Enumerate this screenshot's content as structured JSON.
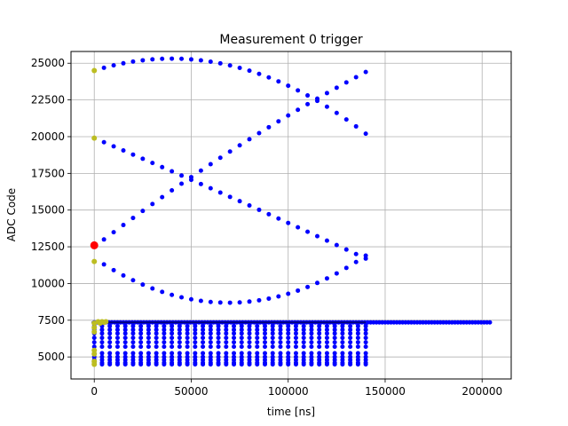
{
  "chart_data": {
    "type": "scatter",
    "title": "Measurement 0 trigger",
    "xlabel": "time [ns]",
    "ylabel": "ADC Code",
    "xlim": [
      -12000,
      215000
    ],
    "ylim": [
      3500,
      25800
    ],
    "grid": true,
    "x_ticks": [
      0,
      50000,
      100000,
      150000,
      200000
    ],
    "x_tick_labels": [
      "0",
      "50000",
      "100000",
      "150000",
      "200000"
    ],
    "y_ticks": [
      5000,
      7500,
      10000,
      12500,
      15000,
      17500,
      20000,
      22500,
      25000
    ],
    "y_tick_labels": [
      "5000",
      "7500",
      "10000",
      "12500",
      "15000",
      "17500",
      "20000",
      "22500",
      "25000"
    ],
    "colors": {
      "series": "#0000ff",
      "pretrigger": "#bcbd22",
      "trigger": "#ff0000",
      "baseline_line": "#000080"
    },
    "series": [
      {
        "kind": "curve",
        "x_start": 0,
        "x_end": 140000,
        "step": 5000,
        "y_start": 24500,
        "y_mid": 24850,
        "y_end": 20200,
        "shape": "quad"
      },
      {
        "kind": "curve",
        "x_start": 0,
        "x_end": 140000,
        "step": 5000,
        "y_start": 19900,
        "y_mid": 15900,
        "y_end": 11700,
        "shape": "quad"
      },
      {
        "kind": "curve",
        "x_start": 5000,
        "x_end": 140000,
        "step": 5000,
        "y_start": 13000,
        "y_mid": 19200,
        "y_end": 24400,
        "shape": "quad"
      },
      {
        "kind": "curve",
        "x_start": 5000,
        "x_end": 140000,
        "step": 5000,
        "y_start": 11300,
        "y_mid": 8700,
        "y_end": 11900,
        "shape": "quad"
      },
      {
        "kind": "flat",
        "x_start": 0,
        "x_end": 140000,
        "step": 4000,
        "y": 7100
      },
      {
        "kind": "flat",
        "x_start": 0,
        "x_end": 140000,
        "step": 4000,
        "y": 6850
      },
      {
        "kind": "flat",
        "x_start": 0,
        "x_end": 140000,
        "step": 4000,
        "y": 6600
      },
      {
        "kind": "flat",
        "x_start": 0,
        "x_end": 140000,
        "step": 4000,
        "y": 6300
      },
      {
        "kind": "flat",
        "x_start": 0,
        "x_end": 140000,
        "step": 4000,
        "y": 6000
      },
      {
        "kind": "flat",
        "x_start": 0,
        "x_end": 140000,
        "step": 4000,
        "y": 5700
      },
      {
        "kind": "flat",
        "x_start": 0,
        "x_end": 140000,
        "step": 4000,
        "y": 5250
      },
      {
        "kind": "flat",
        "x_start": 0,
        "x_end": 140000,
        "step": 4000,
        "y": 5000
      },
      {
        "kind": "flat",
        "x_start": 0,
        "x_end": 140000,
        "step": 4000,
        "y": 4800
      },
      {
        "kind": "flat",
        "x_start": 0,
        "x_end": 140000,
        "step": 4000,
        "y": 4600
      },
      {
        "kind": "flat",
        "x_start": 0,
        "x_end": 140000,
        "step": 4000,
        "y": 4500
      },
      {
        "kind": "flat",
        "x_start": 0,
        "x_end": 205000,
        "step": 1500,
        "y": 7350
      }
    ],
    "pretrigger_points": [
      [
        0,
        24500
      ],
      [
        0,
        19900
      ],
      [
        0,
        11500
      ],
      [
        0,
        7300
      ],
      [
        0,
        7000
      ],
      [
        0,
        6700
      ],
      [
        0,
        5450
      ],
      [
        0,
        5200
      ],
      [
        0,
        4700
      ],
      [
        0,
        4500
      ],
      [
        2000,
        7400
      ],
      [
        3000,
        7300
      ],
      [
        4000,
        7400
      ],
      [
        5000,
        7350
      ],
      [
        6000,
        7400
      ]
    ],
    "trigger_point": [
      0,
      12600
    ],
    "baseline_y": 7350
  }
}
